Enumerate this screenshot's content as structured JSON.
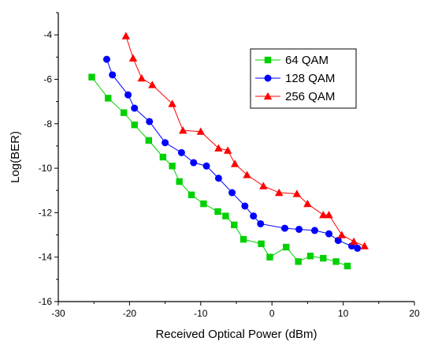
{
  "chart_data": {
    "type": "line",
    "xlabel": "Received Optical Power (dBm)",
    "ylabel": "Log(BER)",
    "xlim": [
      -30,
      20
    ],
    "ylim": [
      -16,
      -3
    ],
    "xticks": [
      -30,
      -20,
      -10,
      0,
      10,
      20
    ],
    "yticks": [
      -16,
      -14,
      -12,
      -10,
      -8,
      -6,
      -4
    ],
    "grid": false,
    "legend_position": "top-right",
    "series": [
      {
        "name": "64 QAM",
        "color": "#00d000",
        "marker": "square",
        "x": [
          -25.3,
          -23,
          -20.8,
          -19.3,
          -17.3,
          -15.3,
          -14,
          -13,
          -11.3,
          -9.6,
          -7.6,
          -6.5,
          -5.3,
          -4,
          -1.5,
          -0.3,
          2,
          3.7,
          5.4,
          7.2,
          9,
          10.6
        ],
        "y": [
          -5.9,
          -6.85,
          -7.5,
          -8.05,
          -8.75,
          -9.5,
          -9.9,
          -10.6,
          -11.2,
          -11.6,
          -11.95,
          -12.15,
          -12.55,
          -13.2,
          -13.4,
          -14.0,
          -13.55,
          -14.2,
          -13.95,
          -14.05,
          -14.2,
          -14.4
        ]
      },
      {
        "name": "128 QAM",
        "color": "#0000ff",
        "marker": "circle",
        "x": [
          -23.2,
          -22.4,
          -20.2,
          -19.3,
          -17.2,
          -15,
          -12.7,
          -11,
          -9.2,
          -7.5,
          -5.6,
          -3.8,
          -2.6,
          -1.6,
          1.8,
          3.8,
          6,
          8,
          9.3,
          11.2,
          12
        ],
        "y": [
          -5.1,
          -5.8,
          -6.7,
          -7.3,
          -7.9,
          -8.85,
          -9.3,
          -9.75,
          -9.9,
          -10.45,
          -11.1,
          -11.7,
          -12.15,
          -12.5,
          -12.7,
          -12.75,
          -12.8,
          -12.95,
          -13.25,
          -13.5,
          -13.6
        ]
      },
      {
        "name": "256 QAM",
        "color": "#ff0000",
        "marker": "triangle",
        "x": [
          -20.5,
          -19.5,
          -18.3,
          -16.8,
          -14,
          -12.5,
          -10,
          -7.5,
          -6.2,
          -5.2,
          -3.5,
          -1.2,
          1,
          3.5,
          5,
          7.2,
          8,
          9.8,
          11.5,
          13
        ],
        "y": [
          -4.05,
          -5.05,
          -5.95,
          -6.25,
          -7.1,
          -8.3,
          -8.35,
          -9.1,
          -9.2,
          -9.8,
          -10.3,
          -10.8,
          -11.1,
          -11.15,
          -11.6,
          -12.1,
          -12.1,
          -13.0,
          -13.3,
          -13.5
        ]
      }
    ]
  }
}
